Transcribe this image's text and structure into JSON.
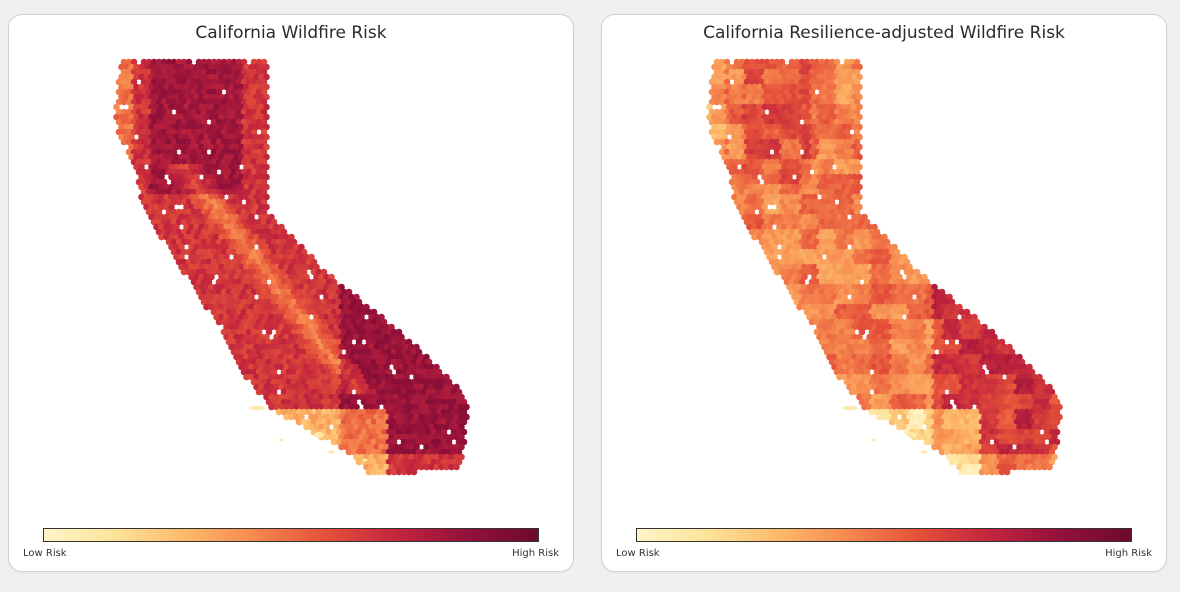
{
  "colors": {
    "scale": [
      "#fff5c8",
      "#fde39a",
      "#fdba6a",
      "#f6874e",
      "#e4503a",
      "#c2253d",
      "#93113a",
      "#6c0a2e"
    ],
    "background": "#ffffff"
  },
  "panels": [
    {
      "title": "California Wildfire Risk",
      "colorbar": {
        "low_label": "Low Risk",
        "high_label": "High Risk"
      },
      "risk_profile": "raw"
    },
    {
      "title": "California Resilience-adjusted Wildfire Risk",
      "colorbar": {
        "low_label": "Low Risk",
        "high_label": "High Risk"
      },
      "risk_profile": "adjusted"
    }
  ]
}
